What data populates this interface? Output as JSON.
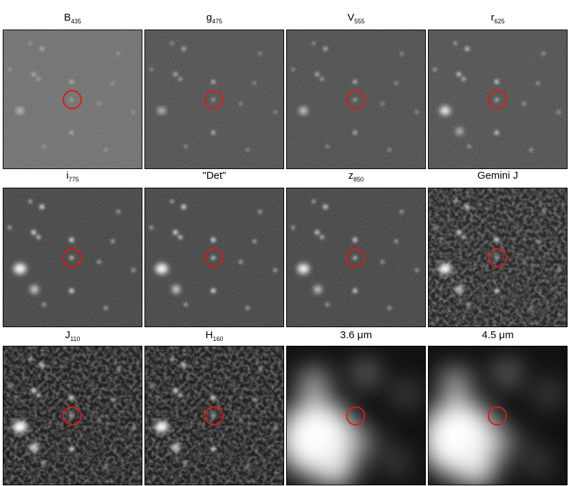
{
  "panels": [
    {
      "label": "B",
      "sub": "435"
    },
    {
      "label": "g",
      "sub": "475"
    },
    {
      "label": "V",
      "sub": "555"
    },
    {
      "label": "r",
      "sub": "625"
    },
    {
      "label": "i",
      "sub": "775"
    },
    {
      "label": "\"Det\""
    },
    {
      "label": "z",
      "sub": "850"
    },
    {
      "label": "Gemini J"
    },
    {
      "label": "J",
      "sub": "110"
    },
    {
      "label": "H",
      "sub": "160"
    },
    {
      "label": "3.6 μm"
    },
    {
      "label": "4.5 μm"
    }
  ]
}
